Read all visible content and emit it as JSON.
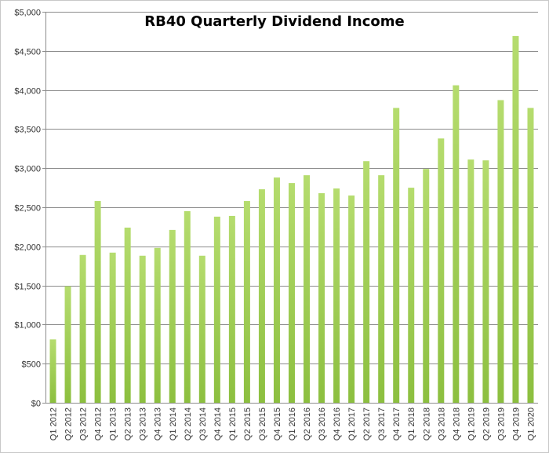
{
  "chart_data": {
    "type": "bar",
    "title": "RB40 Quarterly Dividend Income",
    "xlabel": "",
    "ylabel": "",
    "ylim": [
      0,
      5000
    ],
    "yticks": [
      "$0",
      "$500",
      "$1,000",
      "$1,500",
      "$2,000",
      "$2,500",
      "$3,000",
      "$3,500",
      "$4,000",
      "$4,500",
      "$5,000"
    ],
    "grid": true,
    "legend": "none",
    "bar_color": "#8cbf3f",
    "bar_color_light": "#b5dc6e",
    "categories": [
      "Q1 2012",
      "Q2 2012",
      "Q3 2012",
      "Q4 2012",
      "Q1 2013",
      "Q2 2013",
      "Q3 2013",
      "Q4 2013",
      "Q1 2014",
      "Q2 2014",
      "Q3 2014",
      "Q4 2014",
      "Q1 2015",
      "Q2 2015",
      "Q3 2015",
      "Q4 2015",
      "Q1 2016",
      "Q2 2016",
      "Q3 2016",
      "Q4 2016",
      "Q1 2017",
      "Q2 2017",
      "Q3 2017",
      "Q4 2017",
      "Q1 2018",
      "Q2 2018",
      "Q3 2018",
      "Q4 2018",
      "Q1 2019",
      "Q2 2019",
      "Q3 2019",
      "Q4 2019",
      "Q1 2020"
    ],
    "values": [
      810,
      1490,
      1890,
      2580,
      1920,
      2240,
      1880,
      1980,
      2210,
      2450,
      1880,
      2380,
      2390,
      2580,
      2730,
      2880,
      2810,
      2910,
      2680,
      2740,
      2650,
      3090,
      2910,
      3770,
      2750,
      2990,
      3380,
      4060,
      3110,
      3100,
      3870,
      4690,
      3770
    ]
  }
}
